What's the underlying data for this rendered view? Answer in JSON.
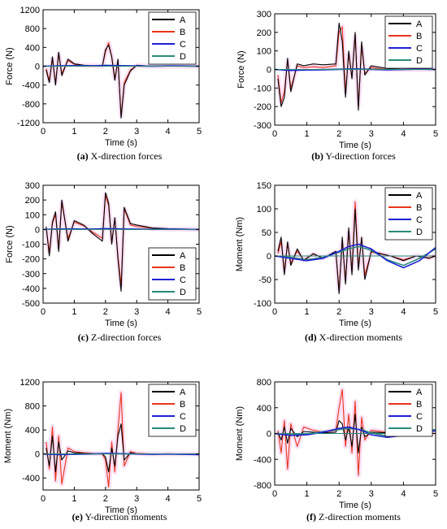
{
  "figure": {
    "colors": {
      "A": "#000000",
      "B": "#e8351b",
      "C": "#1f1fd6",
      "D": "#2a8a7a",
      "highlight": "#f3a6e6"
    }
  },
  "chart_data": [
    {
      "id": "a",
      "type": "line",
      "caption_label": "(a)",
      "caption_text": " X-direction forces",
      "xlabel": "Time (s)",
      "ylabel": "Force (N)",
      "xlim": [
        0,
        5
      ],
      "ylim": [
        -1200,
        1200
      ],
      "xticks": [
        0,
        1,
        2,
        3,
        4,
        5
      ],
      "yticks": [
        -1200,
        -800,
        -400,
        0,
        400,
        800,
        1200
      ],
      "legend_position": "top-right",
      "series": [
        {
          "name": "A",
          "x": [
            0.1,
            0.2,
            0.3,
            0.4,
            0.5,
            0.6,
            0.8,
            1.0,
            1.3,
            1.6,
            1.9,
            2.0,
            2.1,
            2.2,
            2.3,
            2.4,
            2.5,
            2.6,
            2.8,
            3.0,
            3.5,
            4.0,
            5.0
          ],
          "y": [
            -80,
            -350,
            200,
            -400,
            300,
            -200,
            150,
            50,
            20,
            10,
            0,
            350,
            450,
            200,
            -300,
            150,
            -1100,
            -400,
            -100,
            20,
            0,
            0,
            0
          ]
        },
        {
          "name": "B",
          "x": [
            0.1,
            0.2,
            0.3,
            0.4,
            0.5,
            0.6,
            0.8,
            1.0,
            1.3,
            1.6,
            1.9,
            2.0,
            2.1,
            2.2,
            2.3,
            2.4,
            2.5,
            2.6,
            2.8,
            3.0,
            3.5,
            4.0,
            5.0
          ],
          "y": [
            -50,
            -300,
            150,
            -350,
            250,
            -150,
            120,
            40,
            15,
            10,
            0,
            300,
            500,
            200,
            -250,
            100,
            -1050,
            -350,
            -80,
            15,
            0,
            0,
            0
          ]
        },
        {
          "name": "C",
          "x": [
            0,
            0.5,
            1.0,
            1.5,
            2.0,
            2.5,
            3.0,
            3.5,
            4.0,
            4.5,
            5.0
          ],
          "y": [
            0,
            5,
            10,
            5,
            15,
            10,
            5,
            0,
            5,
            5,
            0
          ]
        },
        {
          "name": "D",
          "x": [
            0,
            0.5,
            1.0,
            1.5,
            2.0,
            2.5,
            3.0,
            3.5,
            4.0,
            4.5,
            5.0
          ],
          "y": [
            0,
            8,
            12,
            6,
            20,
            12,
            6,
            2,
            5,
            4,
            0
          ]
        }
      ]
    },
    {
      "id": "b",
      "type": "line",
      "caption_label": "(b)",
      "caption_text": " Y-direction forces",
      "xlabel": "Time (s)",
      "ylabel": "Force (N)",
      "xlim": [
        0,
        5
      ],
      "ylim": [
        -300,
        300
      ],
      "xticks": [
        0,
        1,
        2,
        3,
        4,
        5
      ],
      "yticks": [
        -300,
        -200,
        -100,
        0,
        100,
        200,
        300
      ],
      "legend_position": "top-right",
      "series": [
        {
          "name": "A",
          "x": [
            0.1,
            0.2,
            0.3,
            0.4,
            0.5,
            0.7,
            0.9,
            1.2,
            1.5,
            1.9,
            2.0,
            2.1,
            2.2,
            2.3,
            2.4,
            2.5,
            2.6,
            2.7,
            2.8,
            3.0,
            3.5,
            4.0,
            5.0
          ],
          "y": [
            -50,
            -200,
            -150,
            60,
            -120,
            30,
            20,
            30,
            25,
            30,
            250,
            150,
            -150,
            100,
            -50,
            200,
            -220,
            150,
            -30,
            20,
            5,
            0,
            0
          ]
        },
        {
          "name": "B",
          "x": [
            0.1,
            0.2,
            0.3,
            0.4,
            0.5,
            0.7,
            0.9,
            1.2,
            1.5,
            1.9,
            2.0,
            2.1,
            2.2,
            2.3,
            2.4,
            2.5,
            2.6,
            2.7,
            2.8,
            3.0,
            3.5,
            4.0,
            5.0
          ],
          "y": [
            -30,
            -180,
            -120,
            50,
            -100,
            20,
            10,
            15,
            10,
            20,
            200,
            230,
            -120,
            80,
            -40,
            180,
            -190,
            120,
            -20,
            10,
            0,
            0,
            0
          ]
        },
        {
          "name": "C",
          "x": [
            0,
            0.5,
            1.0,
            1.5,
            2.0,
            2.5,
            3.0,
            3.5,
            4.0,
            4.5,
            5.0
          ],
          "y": [
            0,
            -5,
            -3,
            -2,
            0,
            2,
            0,
            -2,
            0,
            2,
            0
          ]
        },
        {
          "name": "D",
          "x": [
            0,
            0.5,
            1.0,
            1.5,
            2.0,
            2.5,
            3.0,
            3.5,
            4.0,
            4.5,
            5.0
          ],
          "y": [
            0,
            -3,
            -2,
            0,
            2,
            3,
            1,
            -1,
            0,
            1,
            0
          ]
        }
      ]
    },
    {
      "id": "c",
      "type": "line",
      "caption_label": "(c)",
      "caption_text": " Z-direction forces",
      "xlabel": "Time (s)",
      "ylabel": "Force (N)",
      "xlim": [
        0,
        5
      ],
      "ylim": [
        -500,
        300
      ],
      "xticks": [
        0,
        1,
        2,
        3,
        4,
        5
      ],
      "yticks": [
        -500,
        -400,
        -300,
        -200,
        -100,
        0,
        100,
        200,
        300
      ],
      "legend_position": "bottom-right",
      "series": [
        {
          "name": "A",
          "x": [
            0.1,
            0.2,
            0.3,
            0.4,
            0.5,
            0.6,
            0.8,
            1.0,
            1.3,
            1.6,
            1.9,
            2.0,
            2.1,
            2.2,
            2.3,
            2.4,
            2.5,
            2.6,
            2.8,
            3.0,
            3.5,
            4.0,
            5.0
          ],
          "y": [
            20,
            -180,
            50,
            120,
            -150,
            200,
            -80,
            60,
            30,
            -30,
            -80,
            250,
            180,
            -100,
            80,
            -200,
            -420,
            150,
            40,
            30,
            10,
            5,
            0
          ]
        },
        {
          "name": "B",
          "x": [
            0.1,
            0.2,
            0.3,
            0.4,
            0.5,
            0.6,
            0.8,
            1.0,
            1.3,
            1.6,
            1.9,
            2.0,
            2.1,
            2.2,
            2.3,
            2.4,
            2.5,
            2.6,
            2.8,
            3.0,
            3.5,
            4.0,
            5.0
          ],
          "y": [
            10,
            -150,
            40,
            100,
            -120,
            180,
            -60,
            50,
            25,
            -20,
            -60,
            230,
            160,
            -80,
            70,
            -180,
            -380,
            140,
            30,
            20,
            8,
            3,
            0
          ]
        },
        {
          "name": "C",
          "x": [
            0,
            0.5,
            1.0,
            1.5,
            2.0,
            2.5,
            3.0,
            3.5,
            4.0,
            4.5,
            5.0
          ],
          "y": [
            0,
            2,
            3,
            2,
            5,
            3,
            2,
            0,
            2,
            1,
            0
          ]
        },
        {
          "name": "D",
          "x": [
            0,
            0.5,
            1.0,
            1.5,
            2.0,
            2.5,
            3.0,
            3.5,
            4.0,
            4.5,
            5.0
          ],
          "y": [
            0,
            3,
            4,
            2,
            6,
            4,
            2,
            1,
            2,
            1,
            0
          ]
        }
      ]
    },
    {
      "id": "d",
      "type": "line",
      "caption_label": "(d)",
      "caption_text": " X-direction moments",
      "xlabel": "Time (s)",
      "ylabel": "Moment (Nm)",
      "xlim": [
        0,
        5
      ],
      "ylim": [
        -100,
        150
      ],
      "xticks": [
        0,
        1,
        2,
        3,
        4,
        5
      ],
      "yticks": [
        -100,
        -50,
        0,
        50,
        100,
        150
      ],
      "legend_position": "top-right",
      "series": [
        {
          "name": "A",
          "x": [
            0.1,
            0.2,
            0.3,
            0.4,
            0.5,
            0.7,
            0.9,
            1.2,
            1.5,
            1.9,
            2.0,
            2.1,
            2.2,
            2.3,
            2.4,
            2.5,
            2.6,
            2.7,
            2.8,
            3.0,
            3.3,
            3.6,
            4.0,
            4.4,
            4.8,
            5.0
          ],
          "y": [
            10,
            40,
            -40,
            30,
            -20,
            15,
            -10,
            5,
            -5,
            10,
            -80,
            40,
            -60,
            60,
            -40,
            100,
            -30,
            40,
            -50,
            10,
            5,
            0,
            -10,
            0,
            -5,
            0
          ]
        },
        {
          "name": "B",
          "x": [
            0.1,
            0.2,
            0.3,
            0.4,
            0.5,
            0.7,
            0.9,
            1.2,
            1.5,
            1.9,
            2.0,
            2.1,
            2.2,
            2.3,
            2.4,
            2.5,
            2.6,
            2.7,
            2.8,
            3.0,
            3.3,
            3.6,
            4.0,
            4.4,
            4.8,
            5.0
          ],
          "y": [
            5,
            30,
            -30,
            25,
            -15,
            10,
            -8,
            4,
            -4,
            8,
            -70,
            30,
            -50,
            50,
            -30,
            115,
            -20,
            35,
            -40,
            8,
            4,
            0,
            -8,
            0,
            -4,
            0
          ]
        },
        {
          "name": "C",
          "x": [
            0,
            0.5,
            1.0,
            1.5,
            2.0,
            2.3,
            2.6,
            3.0,
            3.5,
            4.0,
            4.5,
            5.0
          ],
          "y": [
            0,
            -5,
            -10,
            -5,
            10,
            20,
            25,
            15,
            -10,
            -25,
            -10,
            18
          ]
        },
        {
          "name": "D",
          "x": [
            0,
            0.5,
            1.0,
            1.5,
            2.0,
            2.3,
            2.6,
            3.0,
            3.5,
            4.0,
            4.5,
            5.0
          ],
          "y": [
            0,
            -3,
            -8,
            -3,
            8,
            15,
            20,
            12,
            -8,
            -20,
            -5,
            15
          ]
        }
      ]
    },
    {
      "id": "e",
      "type": "line",
      "caption_label": "(e)",
      "caption_text": " Y-direction moments",
      "xlabel": "Time (s)",
      "ylabel": "Moment (Nm)",
      "xlim": [
        0,
        5
      ],
      "ylim": [
        -600,
        1200
      ],
      "xticks": [
        0,
        1,
        2,
        3,
        4,
        5
      ],
      "yticks": [
        -400,
        0,
        400,
        800,
        1200
      ],
      "legend_position": "top-right",
      "series": [
        {
          "name": "A",
          "x": [
            0.1,
            0.2,
            0.3,
            0.4,
            0.5,
            0.6,
            0.8,
            1.0,
            1.3,
            1.6,
            1.9,
            2.0,
            2.1,
            2.2,
            2.3,
            2.4,
            2.5,
            2.6,
            2.8,
            3.0,
            3.5,
            4.0,
            5.0
          ],
          "y": [
            100,
            -200,
            300,
            -300,
            200,
            -100,
            50,
            20,
            10,
            5,
            0,
            -50,
            -300,
            100,
            -200,
            300,
            500,
            -100,
            20,
            0,
            0,
            0,
            0
          ]
        },
        {
          "name": "B",
          "x": [
            0.1,
            0.2,
            0.3,
            0.4,
            0.5,
            0.6,
            0.8,
            1.0,
            1.3,
            1.6,
            1.9,
            2.0,
            2.1,
            2.2,
            2.3,
            2.4,
            2.5,
            2.6,
            2.8,
            3.0,
            3.5,
            4.0,
            5.0
          ],
          "y": [
            200,
            -250,
            450,
            -450,
            300,
            -500,
            100,
            40,
            20,
            10,
            0,
            -100,
            -550,
            200,
            -300,
            400,
            1020,
            -200,
            40,
            10,
            0,
            0,
            0
          ]
        },
        {
          "name": "C",
          "x": [
            0,
            0.5,
            1.0,
            1.5,
            2.0,
            2.5,
            3.0,
            3.5,
            4.0,
            4.5,
            5.0
          ],
          "y": [
            0,
            -10,
            -5,
            0,
            10,
            5,
            0,
            -5,
            0,
            -5,
            -10
          ]
        },
        {
          "name": "D",
          "x": [
            0,
            0.5,
            1.0,
            1.5,
            2.0,
            2.5,
            3.0,
            3.5,
            4.0,
            4.5,
            5.0
          ],
          "y": [
            0,
            -5,
            -3,
            0,
            5,
            3,
            0,
            -3,
            0,
            -3,
            -5
          ]
        }
      ]
    },
    {
      "id": "f",
      "type": "line",
      "caption_label": "(f)",
      "caption_text": " Z-direction moments",
      "xlabel": "Time (s)",
      "ylabel": "Moment (Nm)",
      "xlim": [
        0,
        5
      ],
      "ylim": [
        -800,
        800
      ],
      "xticks": [
        0,
        1,
        2,
        3,
        4,
        5
      ],
      "yticks": [
        -800,
        -400,
        0,
        400,
        800
      ],
      "legend_position": "top-right",
      "series": [
        {
          "name": "A",
          "x": [
            0.1,
            0.2,
            0.3,
            0.4,
            0.5,
            0.7,
            0.9,
            1.2,
            1.5,
            1.9,
            2.0,
            2.1,
            2.2,
            2.3,
            2.4,
            2.5,
            2.6,
            2.7,
            2.8,
            3.0,
            3.5,
            4.0,
            4.5,
            5.0
          ],
          "y": [
            20,
            -100,
            100,
            -150,
            80,
            -50,
            30,
            20,
            10,
            20,
            200,
            150,
            -100,
            100,
            -200,
            300,
            -300,
            100,
            -50,
            20,
            10,
            0,
            10,
            0
          ]
        },
        {
          "name": "B",
          "x": [
            0.1,
            0.2,
            0.3,
            0.4,
            0.5,
            0.7,
            0.9,
            1.2,
            1.5,
            1.9,
            2.0,
            2.1,
            2.2,
            2.3,
            2.4,
            2.5,
            2.6,
            2.7,
            2.8,
            3.0,
            3.5,
            4.0,
            4.5,
            5.0
          ],
          "y": [
            50,
            -300,
            200,
            -550,
            150,
            -200,
            100,
            50,
            20,
            50,
            400,
            680,
            -200,
            300,
            -300,
            500,
            -650,
            250,
            -100,
            50,
            20,
            10,
            20,
            0
          ]
        },
        {
          "name": "C",
          "x": [
            0,
            0.5,
            1.0,
            1.5,
            2.0,
            2.3,
            2.7,
            3.0,
            3.5,
            4.0,
            4.5,
            5.0
          ],
          "y": [
            0,
            -30,
            -20,
            20,
            80,
            100,
            50,
            -20,
            -60,
            -30,
            30,
            40
          ]
        },
        {
          "name": "D",
          "x": [
            0,
            0.5,
            1.0,
            1.5,
            2.0,
            2.3,
            2.7,
            3.0,
            3.5,
            4.0,
            4.5,
            5.0
          ],
          "y": [
            0,
            -20,
            -10,
            30,
            60,
            80,
            60,
            10,
            -40,
            -10,
            50,
            60
          ]
        }
      ]
    }
  ]
}
